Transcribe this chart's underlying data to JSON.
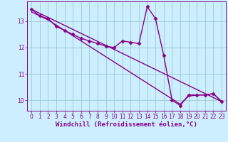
{
  "bg_color": "#cceeff",
  "grid_color": "#99cccc",
  "line_color": "#880088",
  "marker": "D",
  "marker_size": 2.5,
  "line_width": 1.0,
  "xlabel": "Windchill (Refroidissement éolien,°C)",
  "xlabel_color": "#880088",
  "xlabel_fontsize": 6.5,
  "tick_color": "#880088",
  "tick_fontsize": 5.5,
  "xlim": [
    -0.5,
    23.5
  ],
  "ylim": [
    9.6,
    13.75
  ],
  "yticks": [
    10,
    11,
    12,
    13
  ],
  "xticks": [
    0,
    1,
    2,
    3,
    4,
    5,
    6,
    7,
    8,
    9,
    10,
    11,
    12,
    13,
    14,
    15,
    16,
    17,
    18,
    19,
    20,
    21,
    22,
    23
  ],
  "series1_x": [
    0,
    1,
    2,
    3,
    4,
    5,
    6,
    7,
    8,
    9,
    10,
    11,
    12,
    13,
    14,
    15,
    16,
    17,
    18,
    19,
    20,
    21,
    22,
    23
  ],
  "series1_y": [
    13.45,
    13.2,
    13.1,
    12.8,
    12.65,
    12.5,
    12.35,
    12.25,
    12.15,
    12.05,
    12.0,
    12.25,
    12.2,
    12.15,
    13.55,
    13.1,
    11.7,
    10.0,
    9.8,
    10.2,
    10.2,
    10.2,
    10.25,
    9.95
  ],
  "series2_x": [
    0,
    1,
    2,
    3,
    4,
    5,
    6,
    7,
    8,
    9,
    10,
    11,
    12,
    13,
    14,
    15,
    16,
    17,
    18,
    19,
    20,
    21,
    22,
    23
  ],
  "series2_y": [
    13.35,
    13.2,
    13.05,
    12.85,
    12.65,
    12.45,
    12.25,
    12.05,
    11.85,
    11.65,
    11.45,
    11.25,
    11.05,
    10.85,
    10.65,
    10.45,
    10.25,
    10.05,
    9.85,
    10.15,
    10.2,
    10.2,
    10.25,
    9.95
  ],
  "series3_x": [
    0,
    23
  ],
  "series3_y": [
    13.45,
    9.95
  ]
}
